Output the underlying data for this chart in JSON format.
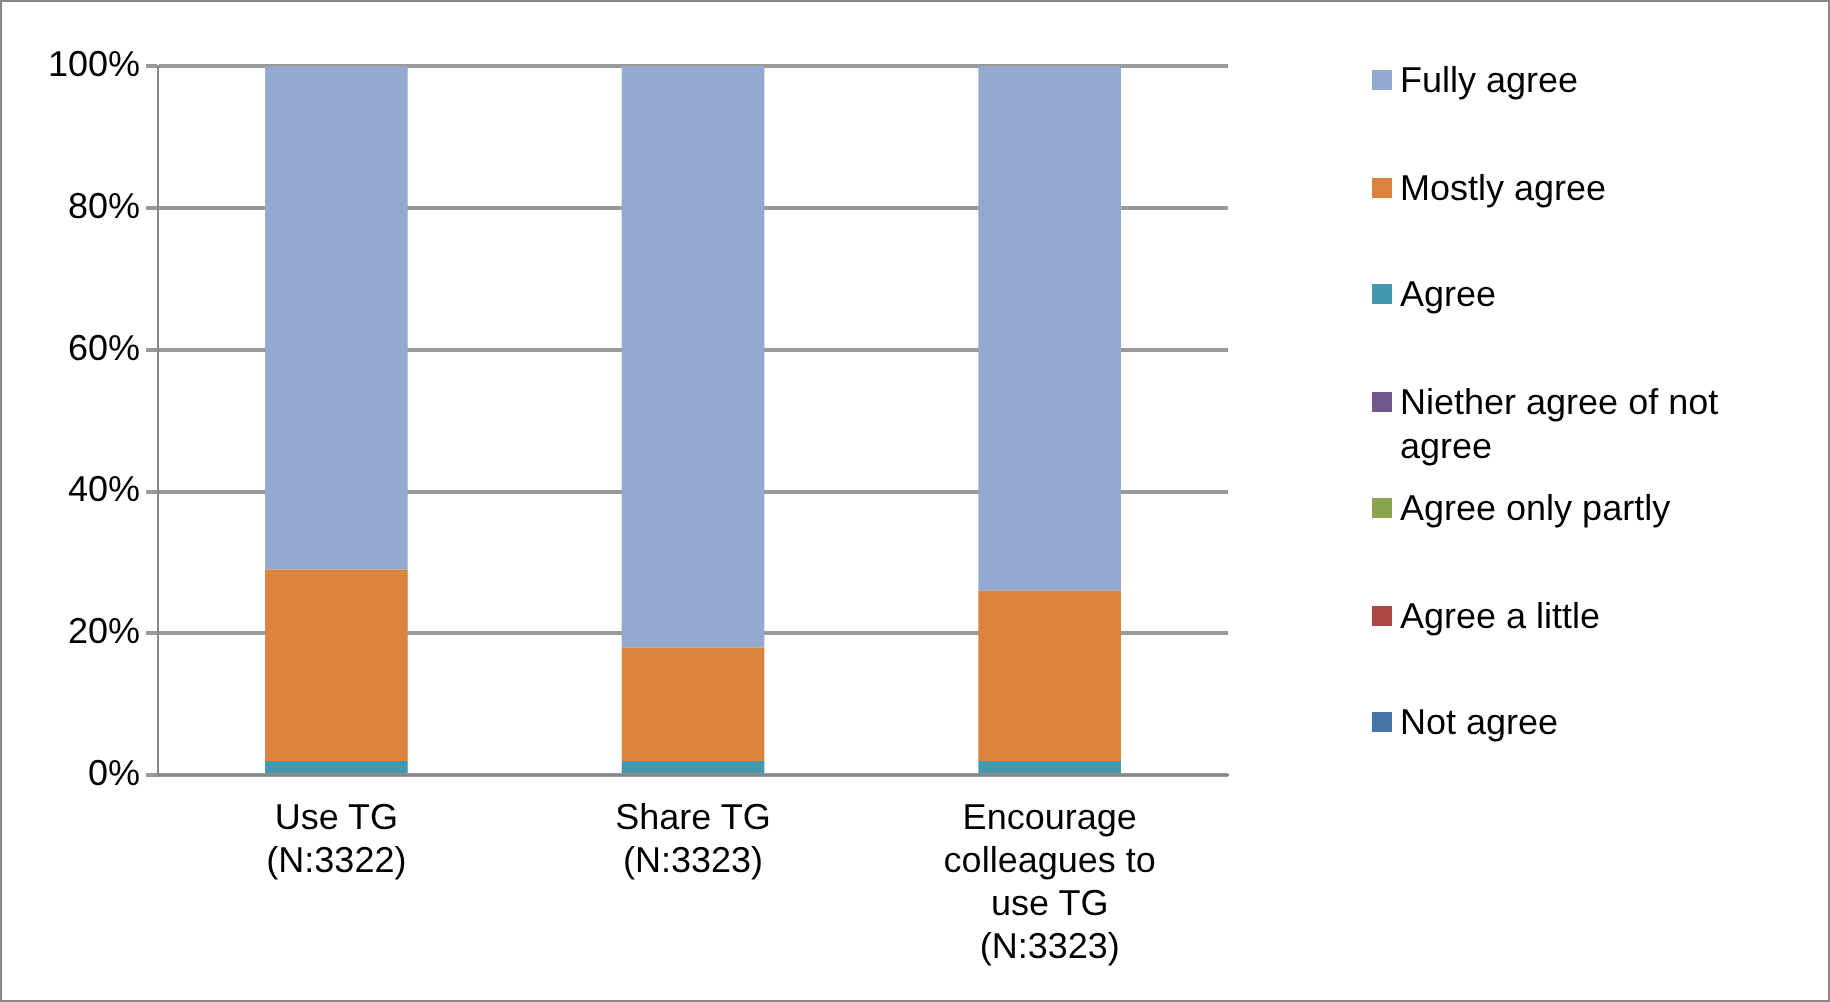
{
  "chart_data": {
    "type": "bar",
    "stacked": true,
    "categories": [
      "Use TG (N:3322)",
      "Share TG (N:3323)",
      "Encourage colleagues to use TG (N:3323)"
    ],
    "series": [
      {
        "name": "Not agree",
        "color": "#4572a7",
        "values": [
          0,
          0,
          0
        ]
      },
      {
        "name": "Agree a little",
        "color": "#aa4643",
        "values": [
          0,
          0,
          0
        ]
      },
      {
        "name": "Agree only partly",
        "color": "#89a54e",
        "values": [
          0,
          0,
          0
        ]
      },
      {
        "name": "Niether agree of not agree",
        "color": "#71588f",
        "values": [
          0,
          0,
          0
        ]
      },
      {
        "name": "Agree",
        "color": "#4198af",
        "values": [
          2,
          2,
          2
        ]
      },
      {
        "name": "Mostly agree",
        "color": "#db843d",
        "values": [
          27,
          16,
          24
        ]
      },
      {
        "name": "Fully agree",
        "color": "#93a9cf",
        "values": [
          71,
          82,
          74
        ]
      }
    ],
    "ylim": [
      0,
      100
    ],
    "yticks": [
      {
        "value": 0,
        "label": "0%"
      },
      {
        "value": 20,
        "label": "20%"
      },
      {
        "value": 40,
        "label": "40%"
      },
      {
        "value": 60,
        "label": "60%"
      },
      {
        "value": 80,
        "label": "80%"
      },
      {
        "value": 100,
        "label": "100%"
      }
    ],
    "grid": "y",
    "legend": "right"
  }
}
